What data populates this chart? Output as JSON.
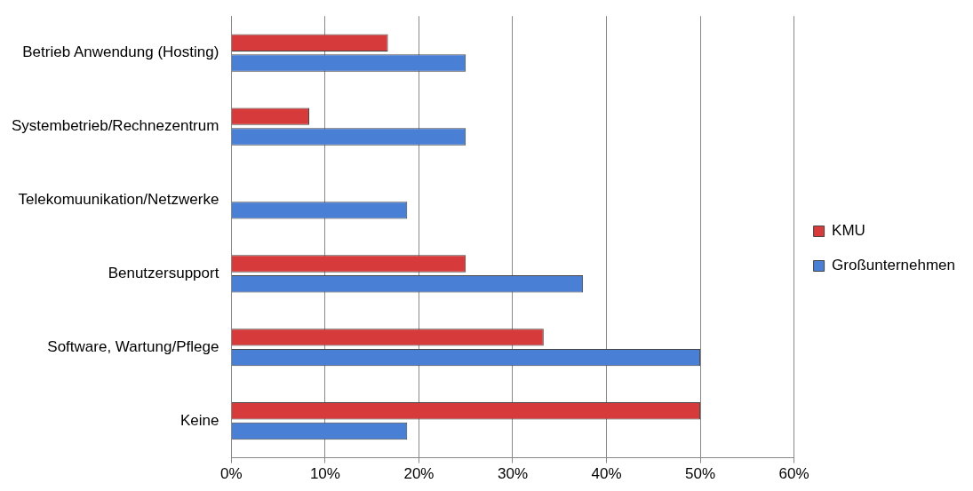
{
  "chart_data": {
    "type": "bar",
    "orientation": "horizontal",
    "categories": [
      "Betrieb Anwendung (Hosting)",
      "Systembetrieb/Rechnezentrum",
      "Telekomuunikation/Netzwerke",
      "Benutzersupport",
      "Software, Wartung/Pflege",
      "Keine"
    ],
    "series": [
      {
        "name": "KMU",
        "color": "#d63a3a",
        "values": [
          16.7,
          8.3,
          0,
          25,
          33.3,
          50
        ]
      },
      {
        "name": "Großunternehmen",
        "color": "#4a7fd6",
        "values": [
          25,
          25,
          18.75,
          37.5,
          50,
          18.75
        ]
      }
    ],
    "xlim": [
      0,
      60
    ],
    "xticks": [
      {
        "value": 0,
        "label": "0%"
      },
      {
        "value": 10,
        "label": "10%"
      },
      {
        "value": 20,
        "label": "20%"
      },
      {
        "value": 30,
        "label": "30%"
      },
      {
        "value": 40,
        "label": "40%"
      },
      {
        "value": 50,
        "label": "50%"
      },
      {
        "value": 60,
        "label": "60%"
      }
    ],
    "grid": "x",
    "legend": "right"
  }
}
